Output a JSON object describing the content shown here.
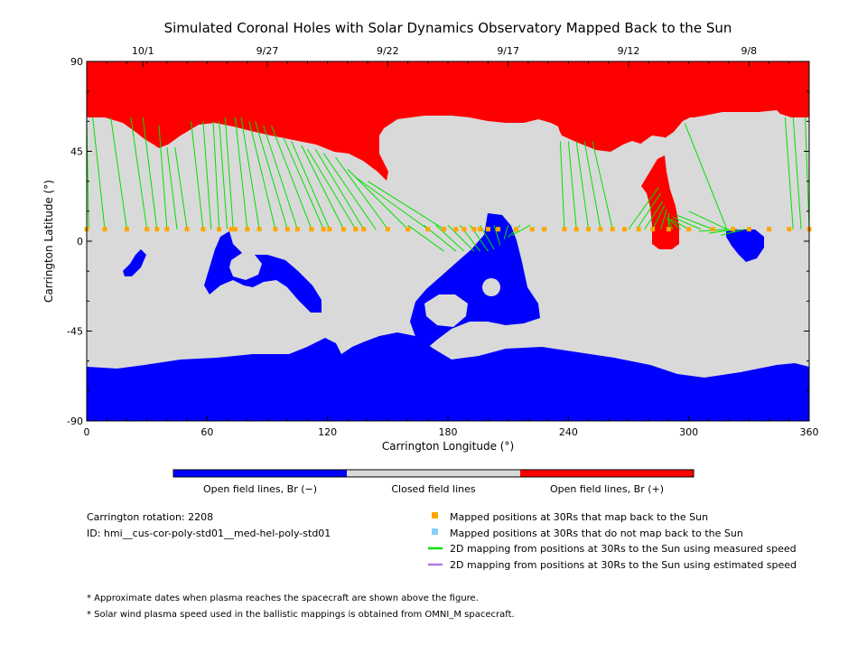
{
  "chart_data": {
    "type": "map",
    "title": "Simulated Coronal Holes with Solar Dynamics Observatory Mapped Back to the Sun",
    "xlabel": "Carrington Longitude (°)",
    "ylabel": "Carrington Latitude (°)",
    "xlim": [
      0,
      360
    ],
    "ylim": [
      -90,
      90
    ],
    "x_ticks": [
      "0",
      "60",
      "120",
      "180",
      "240",
      "300",
      "360"
    ],
    "y_ticks": [
      "90",
      "45",
      "0",
      "-45",
      "-90"
    ],
    "top_dates": [
      {
        "label": "10/1",
        "lon": 28
      },
      {
        "label": "9/27",
        "lon": 90
      },
      {
        "label": "9/22",
        "lon": 150
      },
      {
        "label": "9/17",
        "lon": 210
      },
      {
        "label": "9/12",
        "lon": 270
      },
      {
        "label": "9/8",
        "lon": 330
      }
    ],
    "colorbar": [
      {
        "label": "Open field lines, Br (−)",
        "color": "#0000ff"
      },
      {
        "label": "Closed field lines",
        "color": "#d9d9d9"
      },
      {
        "label": "Open field lines, Br (+)",
        "color": "#ff0000"
      }
    ],
    "footpoint_lat": 6,
    "mapped_points_lon": [
      0,
      9,
      20,
      30,
      35,
      40,
      50,
      58,
      66,
      72,
      74,
      80,
      86,
      94,
      100,
      105,
      112,
      118,
      121,
      128,
      134,
      138,
      150,
      160,
      170,
      178,
      184,
      188,
      193,
      196,
      200,
      205,
      214,
      222,
      228,
      238,
      244,
      250,
      256,
      262,
      268,
      275,
      282,
      290,
      300,
      312,
      322,
      330,
      340,
      350,
      360
    ],
    "field_lines": [
      [
        0,
        62,
        1,
        6
      ],
      [
        3,
        62,
        9,
        6
      ],
      [
        12,
        62,
        20,
        6
      ],
      [
        22,
        62,
        30,
        6
      ],
      [
        28,
        62,
        35,
        6
      ],
      [
        36,
        58,
        40,
        6
      ],
      [
        40,
        47,
        45,
        6
      ],
      [
        44,
        47,
        50,
        6
      ],
      [
        52,
        60,
        58,
        6
      ],
      [
        58,
        60,
        62,
        6
      ],
      [
        63,
        60,
        66,
        6
      ],
      [
        66,
        60,
        70,
        6
      ],
      [
        69,
        62,
        73,
        6
      ],
      [
        74,
        62,
        80,
        6
      ],
      [
        77,
        62,
        86,
        6
      ],
      [
        81,
        60,
        94,
        6
      ],
      [
        84,
        60,
        100,
        6
      ],
      [
        88,
        58,
        105,
        6
      ],
      [
        92,
        58,
        112,
        6
      ],
      [
        98,
        52,
        118,
        6
      ],
      [
        102,
        50,
        121,
        6
      ],
      [
        107,
        48,
        128,
        6
      ],
      [
        110,
        46,
        134,
        6
      ],
      [
        114,
        46,
        138,
        6
      ],
      [
        118,
        44,
        144,
        6
      ],
      [
        124,
        42,
        150,
        6
      ],
      [
        130,
        36,
        160,
        6
      ],
      [
        134,
        32,
        170,
        6
      ],
      [
        140,
        30,
        178,
        6
      ],
      [
        160,
        8,
        178,
        -5
      ],
      [
        168,
        8,
        184,
        -5
      ],
      [
        174,
        8,
        188,
        -5
      ],
      [
        180,
        8,
        193,
        -5
      ],
      [
        186,
        8,
        196,
        -5
      ],
      [
        191,
        8,
        200,
        -5
      ],
      [
        196,
        8,
        203,
        -4
      ],
      [
        203,
        8,
        206,
        -2
      ],
      [
        210,
        8,
        208,
        1
      ],
      [
        216,
        8,
        210,
        2
      ],
      [
        221,
        8,
        212,
        3
      ],
      [
        236,
        50,
        238,
        6
      ],
      [
        240,
        50,
        244,
        6
      ],
      [
        244,
        50,
        250,
        6
      ],
      [
        248,
        50,
        256,
        6
      ],
      [
        252,
        50,
        262,
        6
      ],
      [
        270,
        6,
        285,
        27
      ],
      [
        274,
        6,
        286,
        24
      ],
      [
        278,
        6,
        287,
        20
      ],
      [
        282,
        6,
        288,
        18
      ],
      [
        286,
        6,
        289,
        16
      ],
      [
        290,
        6,
        290,
        14
      ],
      [
        292,
        6,
        289,
        12
      ],
      [
        296,
        6,
        290,
        11
      ],
      [
        300,
        6,
        291,
        11
      ],
      [
        306,
        6,
        292,
        12
      ],
      [
        312,
        6,
        294,
        13
      ],
      [
        319,
        6,
        300,
        15
      ],
      [
        319,
        6,
        298,
        59
      ],
      [
        320,
        6,
        305,
        5
      ],
      [
        324,
        6,
        310,
        4
      ],
      [
        328,
        6,
        316,
        3
      ],
      [
        348,
        62,
        352,
        6
      ],
      [
        352,
        62,
        356,
        6
      ],
      [
        358,
        62,
        360,
        6
      ]
    ],
    "legend": {
      "mapped": "Mapped positions at 30Rs that map back to the Sun",
      "unmapped": "Mapped positions at 30Rs that do not map back to the Sun",
      "measured": "2D mapping from positions at 30Rs to the Sun using measured speed",
      "estimated": "2D mapping from positions at 30Rs to the Sun using estimated speed"
    },
    "colors": {
      "mapped": "#ffa500",
      "unmapped": "#87cefa",
      "measured": "#00e000",
      "estimated": "#b07be0",
      "closed": "#d9d9d9",
      "open_pos": "#ff0000",
      "open_neg": "#0000ff"
    }
  },
  "info": {
    "rotation": "Carrington rotation: 2208",
    "id": "ID: hmi__cus-cor-poly-std01__med-hel-poly-std01"
  },
  "notes": [
    "* Approximate dates when plasma reaches the spacecraft are shown above the figure.",
    "* Solar wind plasma speed used in the ballistic mappings is obtained from OMNI_M spacecraft."
  ]
}
